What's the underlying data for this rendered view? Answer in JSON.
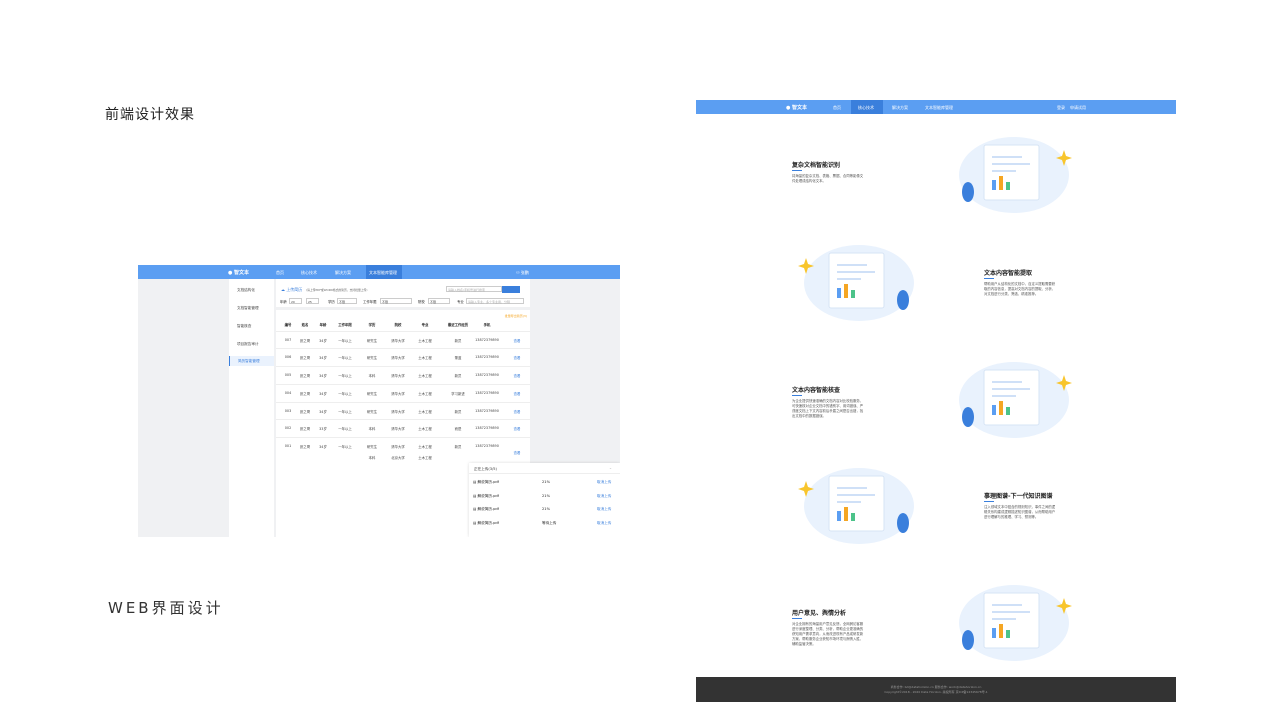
{
  "slide": {
    "heading_frontend": "前端设计效果",
    "heading_web": "WEB界面设计"
  },
  "mockA": {
    "brand": "智文本",
    "nav": [
      "首页",
      "核心技术",
      "解决方案",
      "文本智能库管理"
    ],
    "nav_active": 3,
    "user": "张鹏",
    "logout": "退出",
    "sidebar": [
      "文档结构化",
      "文档智能管理",
      "智能核查",
      "项目报告审计",
      "简历智能管理"
    ],
    "sidebar_active": 4,
    "upload_label": "上传简历",
    "upload_hint": "(请上传PDF或WORD格式的简历，支持批量上传)",
    "search_placeholder": "请输入姓名/手机号进行搜索",
    "filters": {
      "age_label": "年龄",
      "age_from": "20",
      "age_to": "25",
      "edu_label": "学历",
      "edu_value": "不限",
      "years_label": "工作年限",
      "years_value": "不限",
      "school_label": "院校",
      "school_value": "不限",
      "major_label": "专业",
      "major_placeholder": "请输入专业，多个专业用、分隔"
    },
    "export_link": "批量导出简历(3)",
    "table": {
      "headers": [
        "编号",
        "姓名",
        "年龄",
        "工作年限",
        "学历",
        "院校",
        "专业",
        "最近工作经历",
        "手机",
        ""
      ],
      "rows": [
        [
          "007",
          "张之哥",
          "34岁",
          "一年以上",
          "研究生",
          "清华大学",
          "土木工程",
          "新员",
          "13872379890",
          "查看"
        ],
        [
          "006",
          "张之哥",
          "34岁",
          "一年以上",
          "研究生",
          "清华大学",
          "土木工程",
          "董蓝",
          "13872379890",
          "查看"
        ],
        [
          "005",
          "张之哥",
          "34岁",
          "一年以上",
          "本科",
          "清华大学",
          "土木工程",
          "新员",
          "13872379890",
          "查看"
        ],
        [
          "004",
          "张之哥",
          "34岁",
          "一年以上",
          "研究生",
          "清华大学",
          "土木工程",
          "学习新进",
          "13872379890",
          "查看"
        ],
        [
          "003",
          "张之哥",
          "34岁",
          "一年以上",
          "研究生",
          "清华大学",
          "土木工程",
          "新员",
          "13872379890",
          "查看"
        ],
        [
          "002",
          "张之哥",
          "33岁",
          "一年以上",
          "本科",
          "清华大学",
          "土木工程",
          "而是",
          "13872379890",
          "查看"
        ],
        [
          "001",
          "张之哥",
          "34岁",
          "一年以上",
          "研究生",
          "清华大学",
          "土木工程",
          "新员",
          "13872379890",
          "查看"
        ]
      ],
      "extra_row": [
        "本科",
        "北京大学",
        "土木工程"
      ]
    },
    "upload_panel": {
      "title": "正在上传(3/5)",
      "items": [
        {
          "name": "解说简历.pdf",
          "status": "21%",
          "action": "取消上传"
        },
        {
          "name": "解说简历.pdf",
          "status": "21%",
          "action": "取消上传"
        },
        {
          "name": "解说简历.pdf",
          "status": "21%",
          "action": "取消上传"
        },
        {
          "name": "解说简历.pdf",
          "status": "等待上传",
          "action": "取消上传"
        }
      ]
    }
  },
  "mockB": {
    "brand": "智文本",
    "nav": [
      "首页",
      "核心技术",
      "解决方案",
      "文本智能库管理"
    ],
    "nav_active": 1,
    "login": "登录",
    "trial": "申请试用",
    "sections": [
      {
        "title": "复杂文档智能识别",
        "desc": "将海量的复杂文档、表格、票据、合同等影像文件处理成结构化文本。"
      },
      {
        "title": "文本内容智能提取",
        "desc": "帮助用户从结构化的文档中，自定义提取需要获取的内容信息，提高对文档内容的提取、分析，对文档进行分类、筛选、精准推荐。"
      },
      {
        "title": "文本内容智能核查",
        "desc": "为企业提供快速准确的文档内容对比校验服务，可快速核对企业文档中的错别字、用词错误、严谨度文档上下文内容前后矛盾之间是否出错，找出文档中的数据错误。"
      },
      {
        "title": "事理图谱-下一代知识图谱",
        "desc": "注入领域文本中蕴含的规则知识，事件之间的逻辑关系构建成逻辑描述知识图谱，从而帮助用户进行理解与的推理、学习、预测等。"
      },
      {
        "title": "用户意见、舆情分析",
        "desc": "对企业拥有的海量用户意见反馈，全网舆论客服进行深度整理、分类、分析，帮助企业更准确的获知用户需求意向，从而改进现有产品或研发新方案，帮助服务企业获知市场环境与舆情入胜，辅助监管决策。"
      }
    ],
    "footer": {
      "line1": "商务合作: bd@datahorizon.cn    服务合作: work@datahorizon.cn",
      "line2": "Copyright©2018 - 2020 Data Horizon. 版权所有 京ICP备12345678号-1"
    }
  },
  "colors": {
    "primary": "#5b9ef2",
    "primary_dark": "#3a7fdc",
    "accent": "#f5a623",
    "footer": "#333333"
  }
}
